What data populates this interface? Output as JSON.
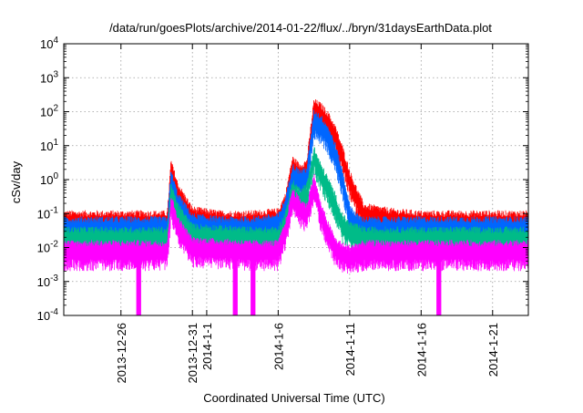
{
  "chart_data": {
    "type": "line",
    "title": "/data/run/goesPlots/archive/2014-01-22/flux/../bryn/31daysEarthData.plot",
    "xlabel": "Coordinated Universal Time (UTC)",
    "ylabel": "cSv/day",
    "yscale": "log",
    "ylim": [
      0.0001,
      10000
    ],
    "xlim": [
      "2013-12-22T00:00",
      "2014-01-23T12:00"
    ],
    "grid": true,
    "legend": "none",
    "y_ticks": [
      {
        "value": 0.0001,
        "base": "10",
        "exp": "-4"
      },
      {
        "value": 0.001,
        "base": "10",
        "exp": "-3"
      },
      {
        "value": 0.01,
        "base": "10",
        "exp": "-2"
      },
      {
        "value": 0.1,
        "base": "10",
        "exp": "-1"
      },
      {
        "value": 1,
        "base": "10",
        "exp": "0"
      },
      {
        "value": 10,
        "base": "10",
        "exp": "1"
      },
      {
        "value": 100,
        "base": "10",
        "exp": "2"
      },
      {
        "value": 1000,
        "base": "10",
        "exp": "3"
      },
      {
        "value": 10000,
        "base": "10",
        "exp": "4"
      }
    ],
    "x_ticks": [
      {
        "x": "2013-12-26",
        "label": "2013-12-26"
      },
      {
        "x": "2013-12-31",
        "label": "2013-12-31"
      },
      {
        "x": "2014-01-01",
        "label": "2014-1-1"
      },
      {
        "x": "2014-01-06",
        "label": "2014-1-6"
      },
      {
        "x": "2014-01-11",
        "label": "2014-1-11"
      },
      {
        "x": "2014-01-16",
        "label": "2014-1-16"
      },
      {
        "x": "2014-01-21",
        "label": "2014-1-21"
      }
    ],
    "series": [
      {
        "color": "#ff0000",
        "x": [
          "2013-12-22T00:00",
          "2013-12-24T00:00",
          "2013-12-26T00:00",
          "2013-12-28T00:00",
          "2013-12-29T06:00",
          "2013-12-29T12:00",
          "2013-12-30T00:00",
          "2013-12-31T00:00",
          "2014-01-02T00:00",
          "2014-01-04T00:00",
          "2014-01-06T00:00",
          "2014-01-06T12:00",
          "2014-01-07T00:00",
          "2014-01-07T12:00",
          "2014-01-08T00:00",
          "2014-01-08T12:00",
          "2014-01-09T00:00",
          "2014-01-09T12:00",
          "2014-01-10T00:00",
          "2014-01-10T12:00",
          "2014-01-11T00:00",
          "2014-01-11T12:00",
          "2014-01-12T00:00",
          "2014-01-14T00:00",
          "2014-01-16T00:00",
          "2014-01-18T00:00",
          "2014-01-20T00:00",
          "2014-01-22T00:00",
          "2014-01-23T12:00"
        ],
        "y": [
          0.06,
          0.06,
          0.06,
          0.06,
          0.06,
          2.0,
          0.4,
          0.08,
          0.06,
          0.06,
          0.07,
          0.2,
          2.5,
          1.5,
          2.0,
          120,
          90,
          50,
          20,
          5,
          1.0,
          0.3,
          0.1,
          0.07,
          0.06,
          0.06,
          0.06,
          0.06,
          0.06
        ]
      },
      {
        "color": "#0066ff",
        "x": [
          "2013-12-22T00:00",
          "2013-12-24T00:00",
          "2013-12-26T00:00",
          "2013-12-28T00:00",
          "2013-12-29T06:00",
          "2013-12-29T12:00",
          "2013-12-30T00:00",
          "2013-12-31T00:00",
          "2014-01-02T00:00",
          "2014-01-04T00:00",
          "2014-01-06T00:00",
          "2014-01-06T12:00",
          "2014-01-07T00:00",
          "2014-01-07T12:00",
          "2014-01-08T00:00",
          "2014-01-08T12:00",
          "2014-01-09T00:00",
          "2014-01-09T12:00",
          "2014-01-10T00:00",
          "2014-01-10T12:00",
          "2014-01-11T00:00",
          "2014-01-11T12:00",
          "2014-01-12T00:00",
          "2014-01-14T00:00",
          "2014-01-16T00:00",
          "2014-01-18T00:00",
          "2014-01-20T00:00",
          "2014-01-22T00:00",
          "2014-01-23T12:00"
        ],
        "y": [
          0.04,
          0.04,
          0.04,
          0.04,
          0.04,
          1.0,
          0.2,
          0.05,
          0.04,
          0.04,
          0.05,
          0.15,
          1.5,
          1.0,
          1.2,
          60,
          40,
          20,
          6,
          1.0,
          0.1,
          0.05,
          0.04,
          0.04,
          0.04,
          0.04,
          0.04,
          0.04,
          0.04
        ]
      },
      {
        "color": "#00bb88",
        "x": [
          "2013-12-22T00:00",
          "2013-12-26T00:00",
          "2013-12-29T06:00",
          "2013-12-29T12:00",
          "2013-12-30T00:00",
          "2013-12-31T00:00",
          "2014-01-04T00:00",
          "2014-01-06T00:00",
          "2014-01-06T12:00",
          "2014-01-07T00:00",
          "2014-01-07T12:00",
          "2014-01-08T00:00",
          "2014-01-08T12:00",
          "2014-01-09T00:00",
          "2014-01-09T12:00",
          "2014-01-10T00:00",
          "2014-01-10T12:00",
          "2014-01-11T00:00",
          "2014-01-12T00:00",
          "2014-01-16T00:00",
          "2014-01-20T00:00",
          "2014-01-23T12:00"
        ],
        "y": [
          0.02,
          0.02,
          0.02,
          0.4,
          0.1,
          0.025,
          0.02,
          0.02,
          0.06,
          0.5,
          0.3,
          0.4,
          5.0,
          1.5,
          0.6,
          0.2,
          0.05,
          0.03,
          0.02,
          0.02,
          0.02,
          0.02
        ]
      },
      {
        "color": "#ff00ff",
        "x": [
          "2013-12-22T00:00",
          "2013-12-26T00:00",
          "2013-12-29T06:00",
          "2013-12-29T12:00",
          "2013-12-30T00:00",
          "2013-12-31T00:00",
          "2014-01-04T00:00",
          "2014-01-06T00:00",
          "2014-01-06T12:00",
          "2014-01-07T00:00",
          "2014-01-07T12:00",
          "2014-01-08T00:00",
          "2014-01-08T12:00",
          "2014-01-09T00:00",
          "2014-01-09T12:00",
          "2014-01-10T00:00",
          "2014-01-10T12:00",
          "2014-01-11T00:00",
          "2014-01-12T00:00",
          "2014-01-16T00:00",
          "2014-01-20T00:00",
          "2014-01-23T12:00"
        ],
        "y": [
          0.008,
          0.008,
          0.008,
          0.2,
          0.04,
          0.01,
          0.008,
          0.008,
          0.03,
          0.3,
          0.15,
          0.1,
          0.8,
          0.1,
          0.03,
          0.01,
          0.007,
          0.006,
          0.008,
          0.008,
          0.008,
          0.008
        ]
      }
    ],
    "dips": [
      "2013-12-27T06:00",
      "2014-01-03T00:00",
      "2014-01-04T06:00",
      "2014-01-17T06:00"
    ]
  }
}
